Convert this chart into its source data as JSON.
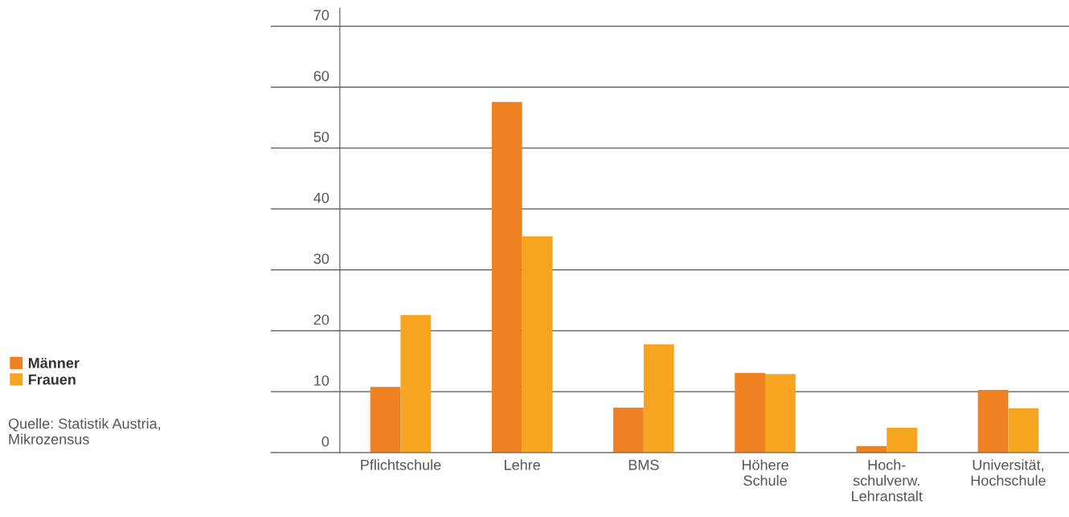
{
  "chart_data": {
    "type": "bar",
    "categories": [
      "Pflichtschule",
      "Lehre",
      "BMS",
      "Höhere\nSchule",
      "Hoch-\nschulverw.\nLehranstalt",
      "Universität,\nHochschule"
    ],
    "series": [
      {
        "name": "Männer",
        "color": "#f08122",
        "values": [
          10.8,
          57.6,
          7.4,
          13.1,
          1.1,
          10.3
        ]
      },
      {
        "name": "Frauen",
        "color": "#f7a520",
        "values": [
          22.6,
          35.5,
          17.8,
          12.9,
          4.1,
          7.3
        ]
      }
    ],
    "ylim": [
      0,
      73
    ],
    "yticks": [
      0,
      10,
      20,
      30,
      40,
      50,
      60,
      70
    ],
    "grid": "y",
    "legend": "left",
    "annotations": [
      "Quelle: Statistik Austria,\nMikrozensus"
    ]
  }
}
